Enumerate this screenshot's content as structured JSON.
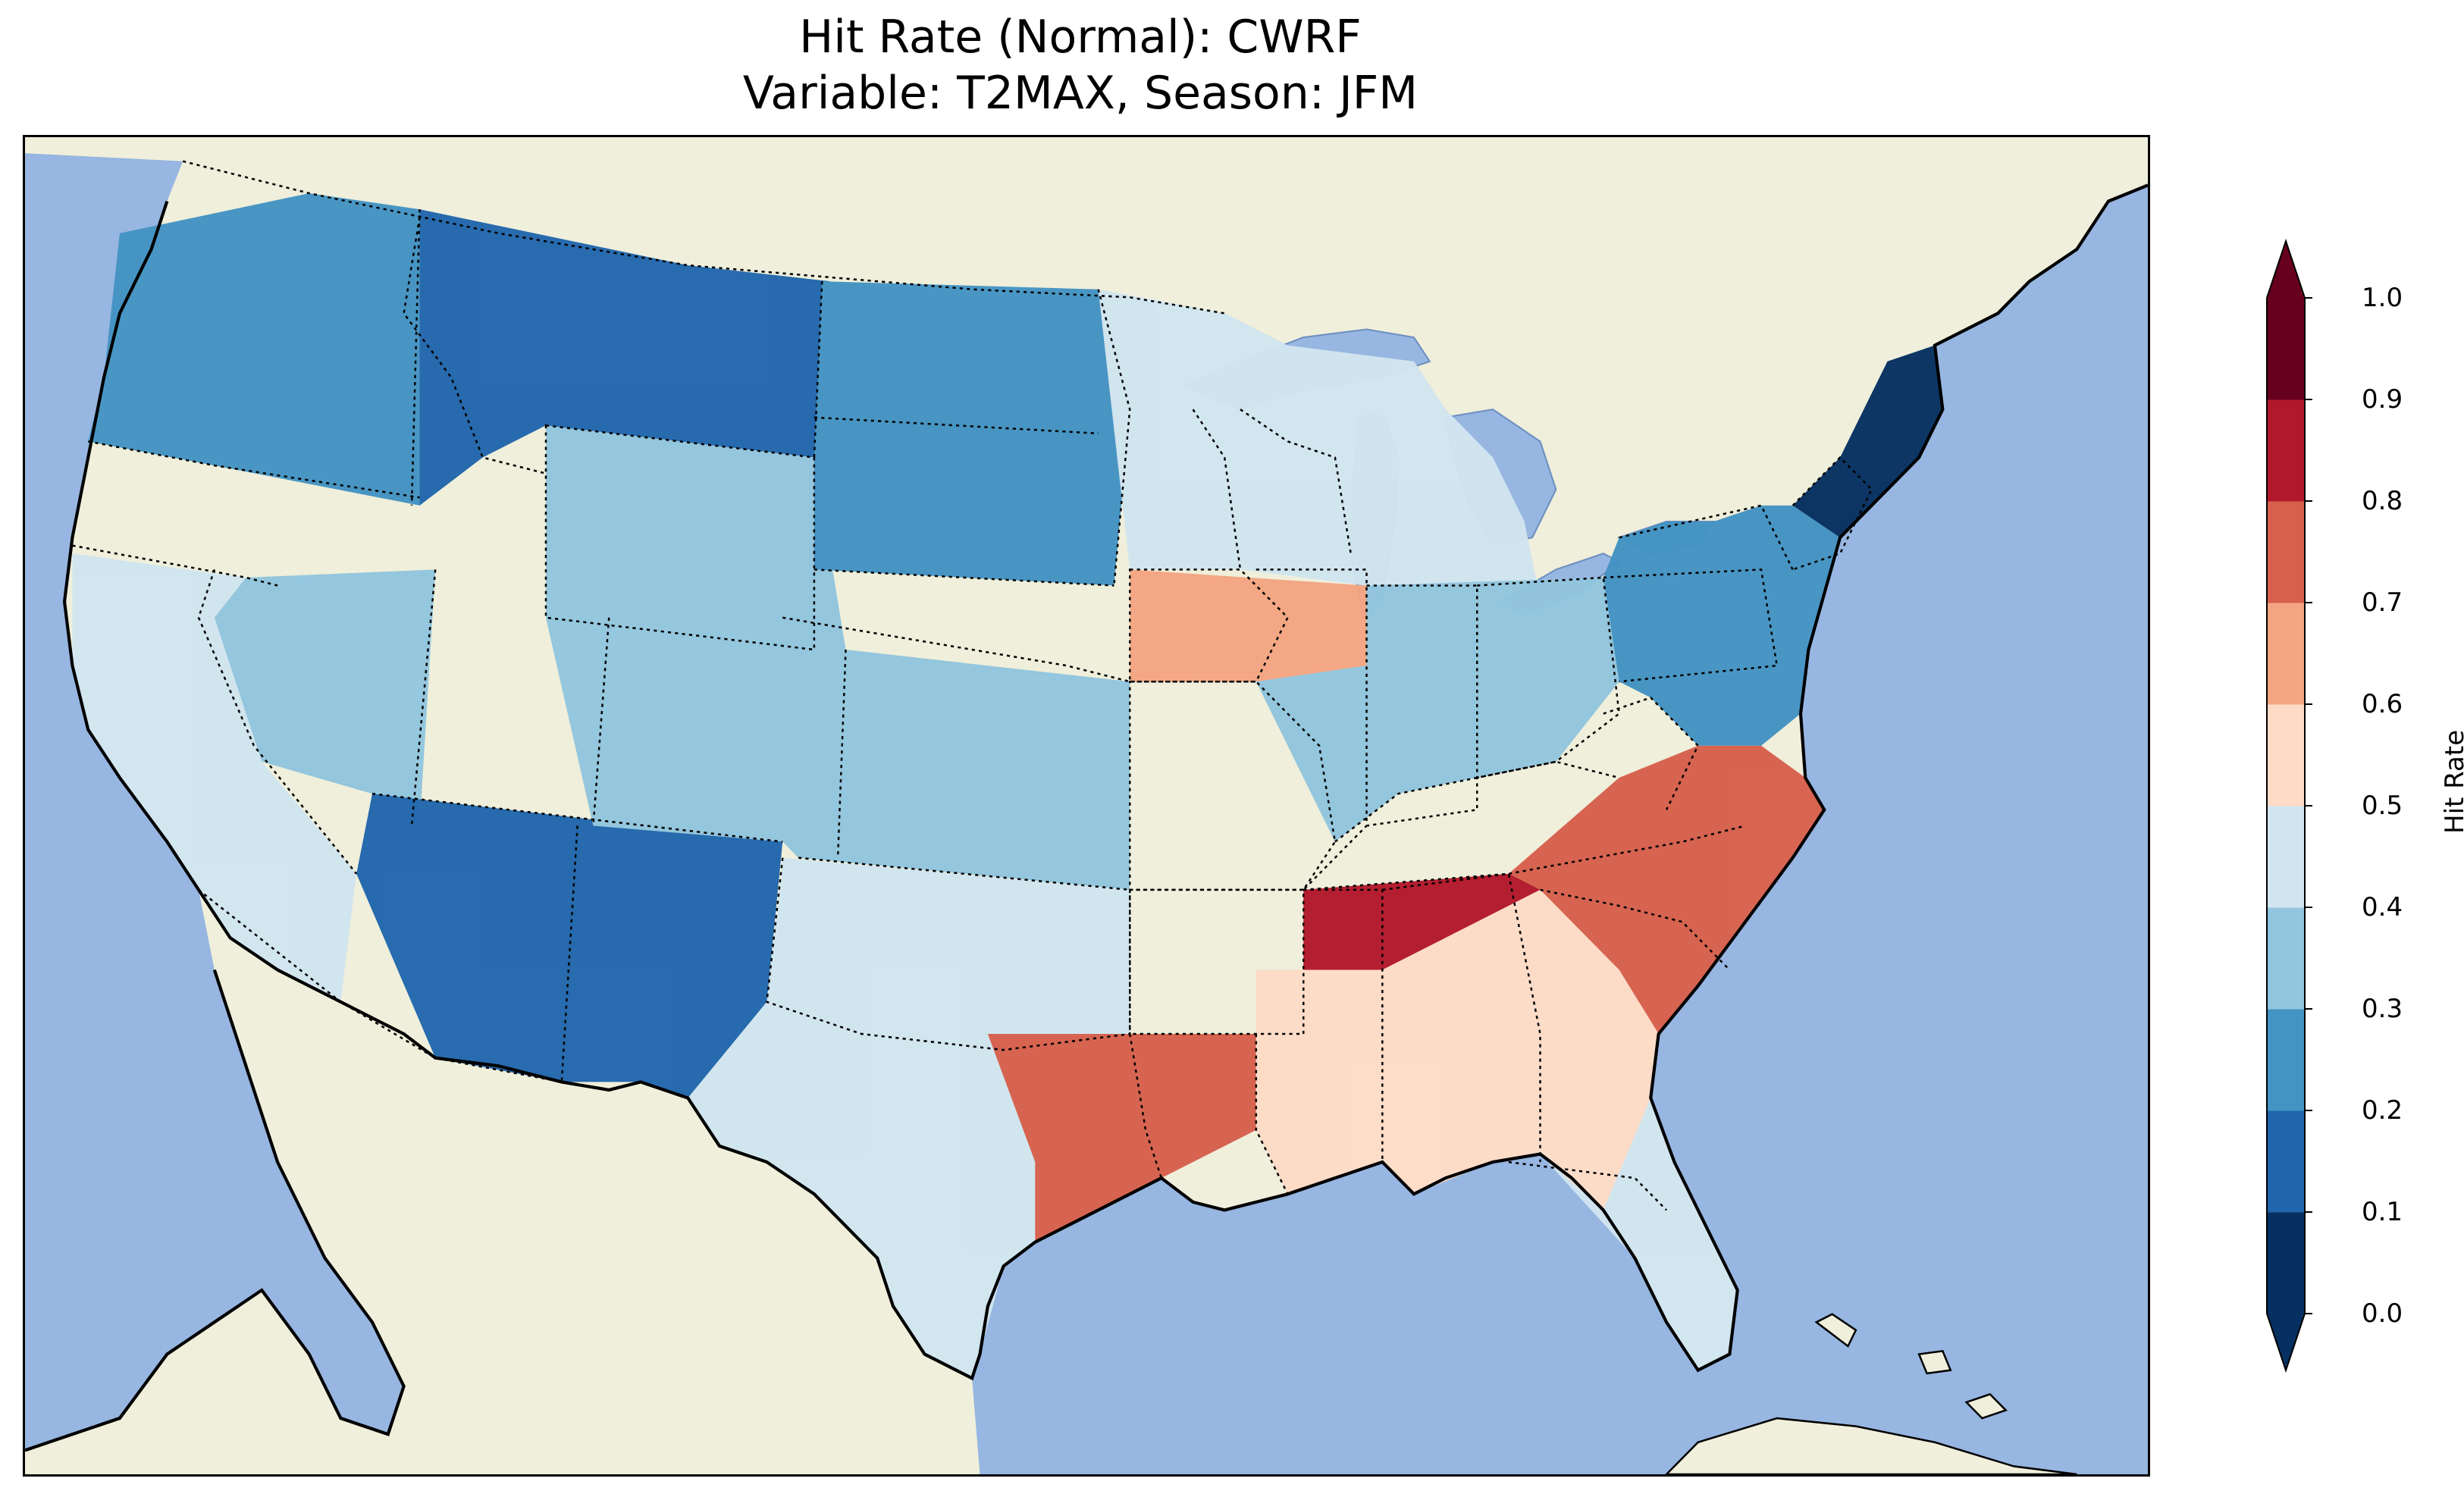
{
  "title": {
    "line1": "Hit Rate (Normal): CWRF",
    "line2": "Variable: T2MAX, Season: JFM"
  },
  "map": {
    "projection": "PlateCarree",
    "extent_deg": {
      "lon_min": -125,
      "lon_max": -66,
      "lat_min": 24,
      "lat_max": 50
    },
    "ocean_color": "#97b6e1",
    "land_color": "#efefdb",
    "coastline_color": "#000000",
    "state_border_style": "dotted"
  },
  "colorbar": {
    "label": "Hit Rate",
    "extend": "both",
    "levels": [
      0.0,
      0.1,
      0.2,
      0.3,
      0.4,
      0.5,
      0.6,
      0.7,
      0.8,
      0.9,
      1.0
    ],
    "tick_labels": [
      "0.0",
      "0.1",
      "0.2",
      "0.3",
      "0.4",
      "0.5",
      "0.6",
      "0.7",
      "0.8",
      "0.9",
      "1.0"
    ],
    "colors": [
      "#053061",
      "#2166ac",
      "#4393c3",
      "#92c5de",
      "#d1e5f0",
      "#fddbc7",
      "#f4a582",
      "#d6604d",
      "#b2182b",
      "#67001f"
    ]
  },
  "field_regions": [
    {
      "name": "pacific-northwest",
      "value": 0.25
    },
    {
      "name": "northern-rockies",
      "value": 0.15
    },
    {
      "name": "great-basin",
      "value": 0.35
    },
    {
      "name": "california",
      "value": 0.45
    },
    {
      "name": "southwest-arizona-new-mexico",
      "value": 0.12
    },
    {
      "name": "central-plains",
      "value": 0.3
    },
    {
      "name": "north-dakota-south-dakota",
      "value": 0.2
    },
    {
      "name": "upper-midwest",
      "value": 0.45
    },
    {
      "name": "iowa-illinois",
      "value": 0.62
    },
    {
      "name": "texas",
      "value": 0.45
    },
    {
      "name": "east-texas-louisiana",
      "value": 0.7
    },
    {
      "name": "tennessee-valley",
      "value": 0.85
    },
    {
      "name": "carolinas-virginia",
      "value": 0.78
    },
    {
      "name": "southeast",
      "value": 0.55
    },
    {
      "name": "florida",
      "value": 0.45
    },
    {
      "name": "ohio-valley",
      "value": 0.3
    },
    {
      "name": "northeast",
      "value": 0.25
    },
    {
      "name": "maine",
      "value": 0.08
    }
  ]
}
